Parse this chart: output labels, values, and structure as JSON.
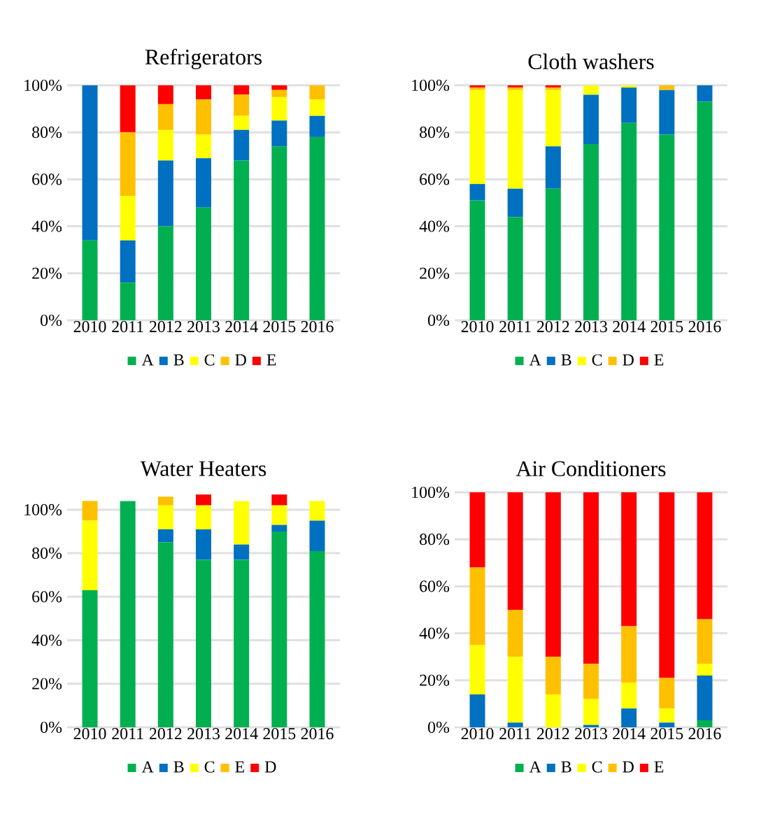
{
  "chart_data": [
    {
      "type": "bar",
      "title": "Refrigerators",
      "stacked": true,
      "grid": "y",
      "legend": "bottom",
      "categories": [
        "2010",
        "2011",
        "2012",
        "2013",
        "2014",
        "2015",
        "2016"
      ],
      "ylim": [
        0,
        100
      ],
      "yticks": [
        {
          "value": 0,
          "label": "0%"
        },
        {
          "value": 20,
          "label": "20%"
        },
        {
          "value": 40,
          "label": "40%"
        },
        {
          "value": 60,
          "label": "60%"
        },
        {
          "value": 80,
          "label": "80%"
        },
        {
          "value": 100,
          "label": "100%"
        }
      ],
      "series": [
        {
          "name": "A",
          "color": "#00b050",
          "values": [
            34,
            16,
            40,
            48,
            68,
            74,
            78
          ]
        },
        {
          "name": "B",
          "color": "#0070c0",
          "values": [
            66,
            18,
            28,
            21,
            13,
            11,
            9
          ]
        },
        {
          "name": "C",
          "color": "#ffff00",
          "values": [
            0,
            19,
            13,
            10,
            6,
            10,
            7
          ]
        },
        {
          "name": "D",
          "color": "#ffc000",
          "values": [
            0,
            27,
            11,
            15,
            9,
            3,
            6
          ]
        },
        {
          "name": "E",
          "color": "#ff0000",
          "values": [
            0,
            20,
            8,
            6,
            4,
            2,
            0
          ]
        }
      ]
    },
    {
      "type": "bar",
      "title": "Cloth washers",
      "stacked": true,
      "grid": "y",
      "legend": "bottom",
      "categories": [
        "2010",
        "2011",
        "2012",
        "2013",
        "2014",
        "2015",
        "2016"
      ],
      "ylim": [
        0,
        100
      ],
      "yticks": [
        {
          "value": 0,
          "label": "0%"
        },
        {
          "value": 20,
          "label": "20%"
        },
        {
          "value": 40,
          "label": "40%"
        },
        {
          "value": 60,
          "label": "60%"
        },
        {
          "value": 80,
          "label": "80%"
        },
        {
          "value": 100,
          "label": "100%"
        }
      ],
      "series": [
        {
          "name": "A",
          "color": "#00b050",
          "values": [
            51,
            44,
            56,
            75,
            84,
            79,
            93
          ]
        },
        {
          "name": "B",
          "color": "#0070c0",
          "values": [
            7,
            12,
            18,
            21,
            15,
            19,
            7
          ]
        },
        {
          "name": "C",
          "color": "#ffff00",
          "values": [
            40,
            42,
            24,
            4,
            1,
            0,
            0
          ]
        },
        {
          "name": "D",
          "color": "#ffc000",
          "values": [
            1,
            1,
            1,
            0,
            0,
            2,
            0
          ]
        },
        {
          "name": "E",
          "color": "#ff0000",
          "values": [
            1,
            1,
            1,
            0,
            0,
            0,
            0
          ]
        }
      ]
    },
    {
      "type": "bar",
      "title": "Water Heaters",
      "stacked": true,
      "grid": "y",
      "legend": "bottom",
      "categories": [
        "2010",
        "2011",
        "2012",
        "2013",
        "2014",
        "2015",
        "2016"
      ],
      "ylim": [
        0,
        108
      ],
      "yticks": [
        {
          "value": 0,
          "label": "0%"
        },
        {
          "value": 20,
          "label": "20%"
        },
        {
          "value": 40,
          "label": "40%"
        },
        {
          "value": 60,
          "label": "60%"
        },
        {
          "value": 80,
          "label": "80%"
        },
        {
          "value": 100,
          "label": "100%"
        }
      ],
      "series": [
        {
          "name": "A",
          "color": "#00b050",
          "values": [
            63,
            104,
            85,
            77,
            77,
            90,
            81
          ]
        },
        {
          "name": "B",
          "color": "#0070c0",
          "values": [
            0,
            0,
            6,
            14,
            7,
            3,
            14
          ]
        },
        {
          "name": "C",
          "color": "#ffff00",
          "values": [
            32,
            0,
            11,
            11,
            20,
            9,
            9
          ]
        },
        {
          "name": "E",
          "color": "#ffc000",
          "values": [
            9,
            0,
            4,
            0,
            0,
            0,
            0
          ]
        },
        {
          "name": "D",
          "color": "#ff0000",
          "values": [
            0,
            0,
            0,
            5,
            0,
            5,
            0
          ]
        }
      ]
    },
    {
      "type": "bar",
      "title": "Air Conditioners",
      "stacked": true,
      "grid": "y",
      "legend": "bottom",
      "categories": [
        "2010",
        "2011",
        "2012",
        "2013",
        "2014",
        "2015",
        "2016"
      ],
      "ylim": [
        0,
        100
      ],
      "yticks": [
        {
          "value": 0,
          "label": "0%"
        },
        {
          "value": 20,
          "label": "20%"
        },
        {
          "value": 40,
          "label": "40%"
        },
        {
          "value": 60,
          "label": "60%"
        },
        {
          "value": 80,
          "label": "80%"
        },
        {
          "value": 100,
          "label": "100%"
        }
      ],
      "series": [
        {
          "name": "A",
          "color": "#00b050",
          "values": [
            0,
            0,
            0,
            0,
            0,
            0,
            3
          ]
        },
        {
          "name": "B",
          "color": "#0070c0",
          "values": [
            14,
            2,
            0,
            1,
            8,
            2,
            19
          ]
        },
        {
          "name": "C",
          "color": "#ffff00",
          "values": [
            21,
            28,
            14,
            11,
            11,
            6,
            5
          ]
        },
        {
          "name": "D",
          "color": "#ffc000",
          "values": [
            33,
            20,
            16,
            15,
            24,
            13,
            19
          ]
        },
        {
          "name": "E",
          "color": "#ff0000",
          "values": [
            32,
            50,
            70,
            73,
            57,
            79,
            54
          ]
        }
      ]
    }
  ]
}
